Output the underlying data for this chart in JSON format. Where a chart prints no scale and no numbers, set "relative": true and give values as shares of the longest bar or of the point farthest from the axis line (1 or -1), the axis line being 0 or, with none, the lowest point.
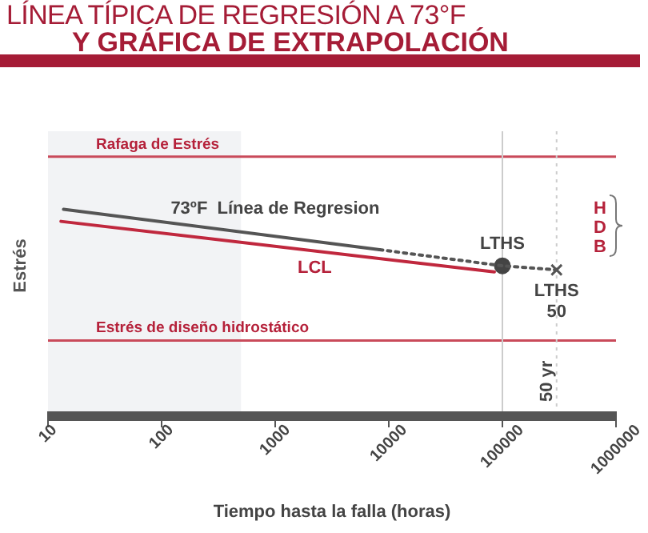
{
  "chart_data": {
    "type": "line",
    "title": "LÍNEA TÍPICA DE REGRESIÓN A 73°F",
    "subtitle": "Y GRÁFICA DE EXTRAPOLACIÓN",
    "xlabel": "Tiempo hasta la falla (horas)",
    "ylabel": "Estrés",
    "relative": true,
    "log": "x",
    "grid": false,
    "legend": false,
    "xlim": [
      10,
      1000000
    ],
    "xticks": [
      10,
      100,
      1000,
      10000,
      100000,
      1000000
    ],
    "series": [
      {
        "name": "73ºF  Línea de Regresion",
        "type": "line",
        "color": "#555555",
        "line_style": "solid",
        "marker": "none",
        "x": [
          13.7,
          8300
        ],
        "values": [
          1.0,
          0.8
        ]
      },
      {
        "type": "line",
        "color": "#555555",
        "line_style": "dotted",
        "marker": "none",
        "x": [
          8300,
          100000,
          300000
        ],
        "values": [
          0.8,
          0.72,
          0.7
        ]
      },
      {
        "name": "LCL",
        "type": "line",
        "color": "#c0283e",
        "line_style": "solid",
        "marker": "none",
        "x": [
          13,
          85000
        ],
        "values": [
          0.94,
          0.69
        ]
      },
      {
        "type": "scatter",
        "color": "#444444",
        "marker": "circle",
        "x": [
          100000
        ],
        "values": [
          0.72
        ]
      },
      {
        "type": "scatter",
        "color": "#555555",
        "marker": "cross",
        "x": [
          300000
        ],
        "values": [
          0.7
        ]
      }
    ],
    "ref_lines": [
      {
        "axis": "y",
        "value": 1.26,
        "label": "Rafaga de Estrés",
        "color": "#c94a5a",
        "line_style": "solid"
      },
      {
        "axis": "y",
        "value": 0.35,
        "label": "Estrés de diseño hidrostático",
        "color": "#c94a5a",
        "line_style": "solid"
      },
      {
        "axis": "x",
        "value": 100000,
        "color": "#cccccc",
        "line_style": "solid"
      },
      {
        "axis": "x",
        "value": 300000,
        "label": "50 yr",
        "color": "#cccccc",
        "line_style": "dotted"
      }
    ],
    "bands": [
      {
        "axis": "x",
        "from": 10,
        "to": 500,
        "color": "#f2f3f5"
      }
    ],
    "annotations": [
      {
        "text": "LTHS",
        "x": 100000,
        "y": 0.72
      },
      {
        "text": "LTHS 50",
        "x": 300000,
        "y": 0.7
      },
      "HDB"
    ]
  }
}
